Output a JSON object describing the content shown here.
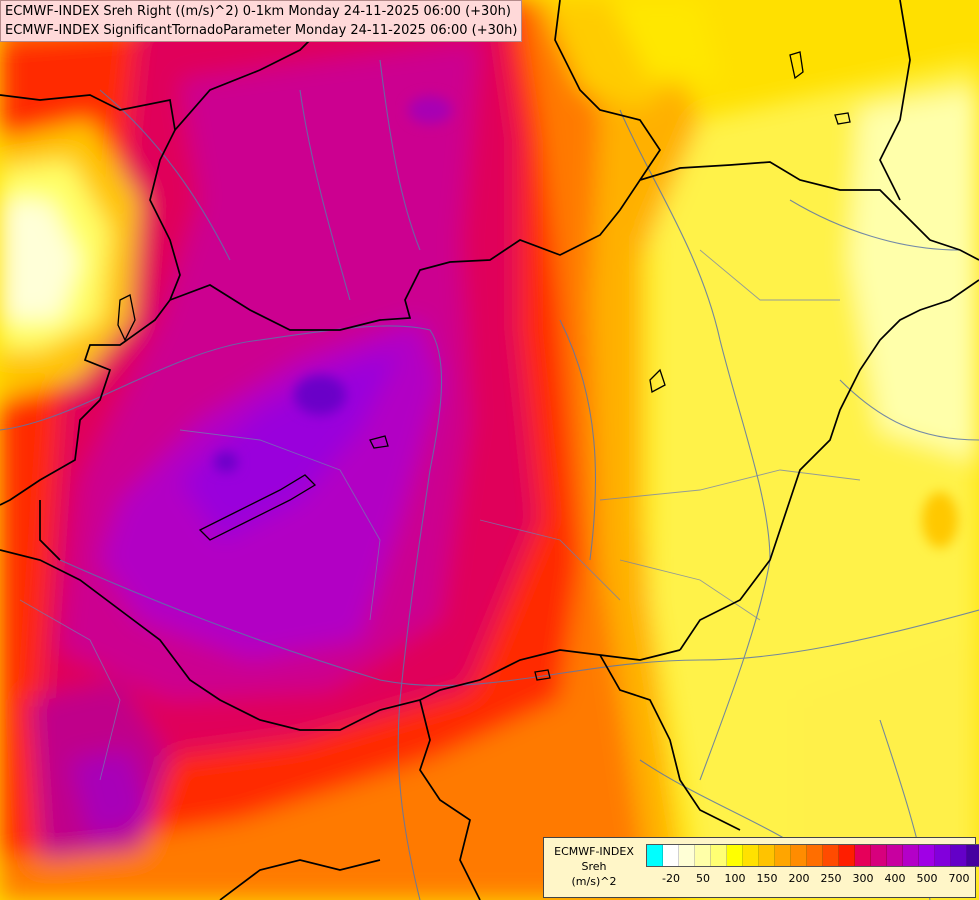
{
  "title": {
    "line1": "ECMWF-INDEX Sreh Right ((m/s)^2) 0-1km Monday 24-11-2025 06:00 (+30h)",
    "line2": "ECMWF-INDEX SignificantTornadoParameter Monday 24-11-2025 06:00 (+30h)"
  },
  "legend": {
    "source": "ECMWF-INDEX",
    "variable": "Sreh",
    "unit": "(m/s)^2",
    "colors": [
      "#00ffff",
      "#ffffff",
      "#ffffd6",
      "#ffffa8",
      "#ffff73",
      "#ffff00",
      "#ffe100",
      "#ffc300",
      "#ffa500",
      "#ff8c00",
      "#ff6e00",
      "#ff4b00",
      "#ff1e00",
      "#e6005a",
      "#d7007d",
      "#c800a0",
      "#b400c8",
      "#a000e6",
      "#8200dc",
      "#6400c8",
      "#4600a0",
      "#00006e"
    ],
    "ticks": [
      {
        "label": "-20",
        "index": 1
      },
      {
        "label": "50",
        "index": 3
      },
      {
        "label": "100",
        "index": 5
      },
      {
        "label": "150",
        "index": 7
      },
      {
        "label": "200",
        "index": 9
      },
      {
        "label": "250",
        "index": 11
      },
      {
        "label": "300",
        "index": 13
      },
      {
        "label": "400",
        "index": 15
      },
      {
        "label": "500",
        "index": 17
      },
      {
        "label": "700",
        "index": 19
      }
    ]
  },
  "map": {
    "field": "Sreh 0-1km right-mover storm relative helicity",
    "max_region": "purple core over western Hungary / Lake Balaton",
    "min_region": "pale yellow over eastern Hungary and far west"
  }
}
